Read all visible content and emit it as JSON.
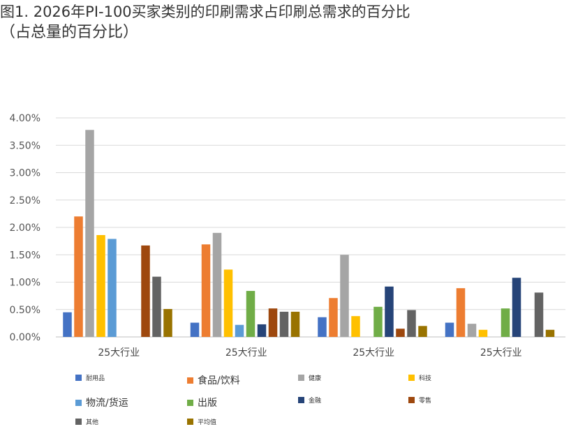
{
  "chart_data": {
    "type": "bar",
    "title": "图1. 2026年PI-100买家类别的印刷需求占印刷总需求的百分比",
    "subtitle": "（占总量的百分比）",
    "categories": [
      "25大行业",
      "25大行业",
      "25大行业",
      "25大行业"
    ],
    "ylim": [
      0,
      4.0
    ],
    "yticks": [
      "0.00%",
      "0.50%",
      "1.00%",
      "1.50%",
      "2.00%",
      "2.50%",
      "3.00%",
      "3.50%",
      "4.00%"
    ],
    "ytick_values": [
      0,
      0.5,
      1.0,
      1.5,
      2.0,
      2.5,
      3.0,
      3.5,
      4.0
    ],
    "grid": true,
    "legend_position": "bottom",
    "series": [
      {
        "name": "耐用品",
        "color": "#4472c4",
        "values": [
          0.45,
          0.26,
          0.36,
          0.26
        ]
      },
      {
        "name": "食品/饮料",
        "color": "#ed7d31",
        "values": [
          2.2,
          1.69,
          0.71,
          0.89
        ]
      },
      {
        "name": "健康",
        "color": "#a5a5a5",
        "values": [
          3.78,
          1.9,
          1.5,
          0.24
        ]
      },
      {
        "name": "科技",
        "color": "#ffc000",
        "values": [
          1.86,
          1.23,
          0.38,
          0.13
        ]
      },
      {
        "name": "物流/货运",
        "color": "#5b9bd5",
        "values": [
          1.79,
          0.22,
          0,
          0
        ]
      },
      {
        "name": "出版",
        "color": "#70ad47",
        "values": [
          0,
          0.84,
          0.55,
          0.52
        ]
      },
      {
        "name": "金融",
        "color": "#264478",
        "values": [
          0,
          0.23,
          0.92,
          1.08
        ]
      },
      {
        "name": "零售",
        "color": "#9e480e",
        "values": [
          1.67,
          0.52,
          0.15,
          0
        ]
      },
      {
        "name": "其他",
        "color": "#636363",
        "values": [
          1.1,
          0.46,
          0.49,
          0.81
        ]
      },
      {
        "name": "平均值",
        "color": "#997300",
        "values": [
          0.51,
          0.46,
          0.2,
          0.13
        ]
      }
    ]
  }
}
